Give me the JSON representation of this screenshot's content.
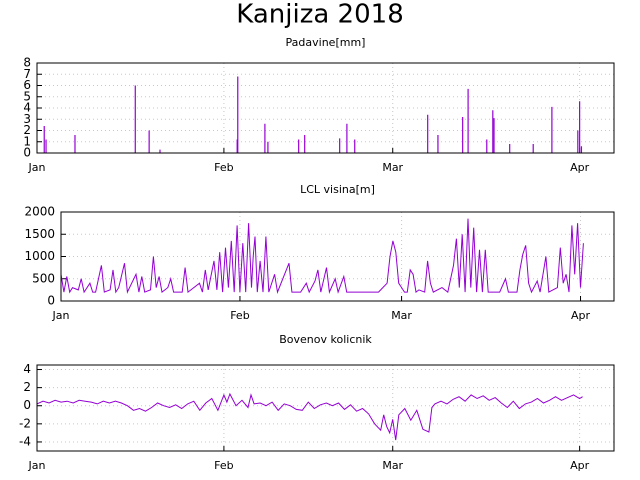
{
  "title": "Kanjiza 2018",
  "chart_data": [
    {
      "type": "impulse",
      "title": "Padavine[mm]",
      "color": "#9400d3",
      "grid": true,
      "x": [
        1.2,
        1.5,
        6.3,
        16.3,
        18.6,
        20.4,
        33.2,
        33.3,
        37.8,
        38.3,
        43.4,
        44.4,
        50.2,
        51.4,
        52.7,
        64.8,
        66.5,
        70.6,
        71.5,
        74.6,
        75.6,
        75.8,
        78.4,
        82.3,
        85.4,
        89.7,
        90.0,
        90.3
      ],
      "values": [
        2.4,
        1.2,
        1.6,
        6.0,
        2.0,
        0.3,
        1.2,
        6.8,
        2.6,
        1.0,
        1.2,
        1.6,
        1.3,
        2.6,
        1.2,
        3.4,
        1.6,
        3.2,
        5.7,
        1.2,
        3.8,
        3.1,
        0.8,
        0.8,
        4.1,
        2.0,
        4.6,
        0.6
      ],
      "xlim": [
        0,
        95.7
      ],
      "xticks": [
        {
          "value": 0,
          "label": "Jan"
        },
        {
          "value": 31,
          "label": "Feb"
        },
        {
          "value": 59,
          "label": "Mar"
        },
        {
          "value": 90,
          "label": "Apr"
        }
      ],
      "ylim": [
        0,
        8
      ],
      "yticks": [
        0,
        1,
        2,
        3,
        4,
        5,
        6,
        7,
        8
      ]
    },
    {
      "type": "line",
      "title": "LCL visina[m]",
      "color": "#9400d3",
      "grid": true,
      "x": [
        0,
        0.5,
        1,
        1.5,
        2,
        3,
        3.5,
        4,
        5,
        5.5,
        6,
        7,
        7.5,
        8.5,
        9,
        9.5,
        10,
        11,
        11.5,
        13,
        13.5,
        14,
        14.5,
        15.5,
        16,
        16.5,
        17,
        17.5,
        18.5,
        19,
        19.5,
        21,
        21.5,
        22,
        24,
        24.5,
        25,
        25.5,
        26.5,
        27,
        27.5,
        28,
        28.5,
        29,
        29.5,
        30,
        30.5,
        31,
        31.5,
        32,
        32.5,
        33,
        33.3,
        33.6,
        34,
        34.5,
        35,
        35.5,
        36,
        37,
        37.5,
        39.5,
        40,
        41.5,
        42.5,
        43,
        44,
        44.5,
        45,
        46,
        46.5,
        47.5,
        48,
        49,
        49.5,
        51,
        53,
        55,
        56.5,
        57,
        57.5,
        58,
        58.5,
        59,
        59.5,
        60,
        60.5,
        61,
        61.5,
        62,
        63,
        63.5,
        64,
        64.5,
        66,
        67,
        68,
        68.5,
        69,
        69.5,
        70,
        70.5,
        71,
        71.5,
        72,
        72.5,
        73,
        73.5,
        74,
        76,
        77,
        77.5,
        79,
        79.5,
        80,
        80.5,
        81,
        81.5,
        82.5,
        83,
        84,
        84.5,
        86,
        86.5,
        87,
        87.5,
        88,
        88.5,
        89,
        89.5,
        90,
        90.5
      ],
      "values": [
        600,
        200,
        550,
        200,
        300,
        250,
        500,
        200,
        400,
        200,
        200,
        800,
        200,
        250,
        700,
        200,
        300,
        850,
        200,
        600,
        200,
        550,
        200,
        250,
        1000,
        300,
        550,
        200,
        300,
        500,
        200,
        200,
        750,
        200,
        400,
        200,
        700,
        250,
        900,
        250,
        1100,
        200,
        1200,
        300,
        1350,
        200,
        1700,
        200,
        1300,
        200,
        1750,
        300,
        1000,
        1450,
        200,
        900,
        200,
        1450,
        200,
        600,
        200,
        850,
        200,
        200,
        400,
        200,
        450,
        700,
        200,
        750,
        200,
        500,
        200,
        550,
        200,
        200,
        200,
        200,
        400,
        1000,
        1350,
        1100,
        400,
        300,
        200,
        200,
        700,
        600,
        200,
        250,
        200,
        900,
        400,
        200,
        300,
        200,
        800,
        1400,
        300,
        1500,
        200,
        1850,
        300,
        1650,
        200,
        1150,
        200,
        1150,
        200,
        200,
        500,
        200,
        200,
        700,
        1050,
        1250,
        400,
        200,
        450,
        200,
        1000,
        200,
        300,
        1200,
        400,
        600,
        200,
        1700,
        600,
        1750,
        300,
        1300
      ],
      "xlim": [
        0,
        95.8
      ],
      "xticks": [
        {
          "value": 0,
          "label": "Jan"
        },
        {
          "value": 31,
          "label": "Feb"
        },
        {
          "value": 59,
          "label": "Mar"
        },
        {
          "value": 90,
          "label": "Apr"
        }
      ],
      "ylim": [
        0,
        2000
      ],
      "yticks": [
        0,
        500,
        1000,
        1500,
        2000
      ]
    },
    {
      "type": "line",
      "title": "Bovenov kolicnik",
      "color": "#9400d3",
      "grid": true,
      "x": [
        0,
        1,
        2,
        3,
        4,
        5,
        6,
        7,
        8,
        9,
        10,
        11,
        12,
        13,
        14,
        15,
        16,
        17,
        18,
        19,
        20,
        21,
        22,
        23,
        24,
        25,
        26,
        27,
        28,
        29,
        30,
        31,
        31.5,
        32,
        33,
        34,
        35,
        35.5,
        36,
        37,
        38,
        39,
        40,
        41,
        42,
        43,
        44,
        45,
        46,
        47,
        48,
        49,
        50,
        51,
        52,
        53,
        54,
        55,
        56,
        57,
        57.5,
        58,
        58.5,
        59,
        59.5,
        60,
        61,
        62,
        63,
        64,
        65,
        65.5,
        66,
        67,
        68,
        69,
        70,
        71,
        72,
        73,
        74,
        75,
        76,
        77,
        78,
        79,
        80,
        81,
        82,
        83,
        84,
        85,
        86,
        87,
        88,
        89,
        90,
        90.5
      ],
      "values": [
        0.2,
        0.5,
        0.3,
        0.6,
        0.4,
        0.5,
        0.3,
        0.6,
        0.5,
        0.4,
        0.2,
        0.5,
        0.3,
        0.5,
        0.3,
        0,
        -0.5,
        -0.3,
        -0.6,
        -0.2,
        0.3,
        0,
        -0.2,
        0.1,
        -0.3,
        0.2,
        0.5,
        -0.5,
        0.3,
        0.8,
        -0.5,
        1.2,
        0.4,
        1.3,
        0,
        0.6,
        -0.2,
        1.2,
        0.2,
        0.3,
        0,
        0.4,
        -0.5,
        0.2,
        0,
        -0.4,
        -0.5,
        0.4,
        -0.3,
        0.1,
        0.3,
        0,
        0.3,
        -0.4,
        0.1,
        -0.6,
        -0.3,
        -0.9,
        -2.0,
        -2.7,
        -1.0,
        -2.3,
        -3.0,
        -1.5,
        -3.8,
        -1.0,
        -0.3,
        -1.6,
        -0.5,
        -2.6,
        -2.9,
        -0.2,
        0.2,
        0.5,
        0.2,
        0.7,
        1.0,
        0.5,
        1.2,
        0.8,
        1.1,
        0.6,
        0.9,
        0.3,
        -0.2,
        0.5,
        -0.3,
        0.2,
        0.4,
        0.8,
        0.3,
        0.6,
        1.0,
        0.6,
        0.9,
        1.2,
        0.8,
        1.0
      ],
      "xlim": [
        0,
        95.7
      ],
      "xticks": [
        {
          "value": 0,
          "label": "Jan"
        },
        {
          "value": 31,
          "label": "Feb"
        },
        {
          "value": 59,
          "label": "Mar"
        },
        {
          "value": 90,
          "label": "Apr"
        }
      ],
      "ylim": [
        -5,
        4.5
      ],
      "yticks": [
        -4,
        -2,
        0,
        2,
        4
      ]
    }
  ]
}
